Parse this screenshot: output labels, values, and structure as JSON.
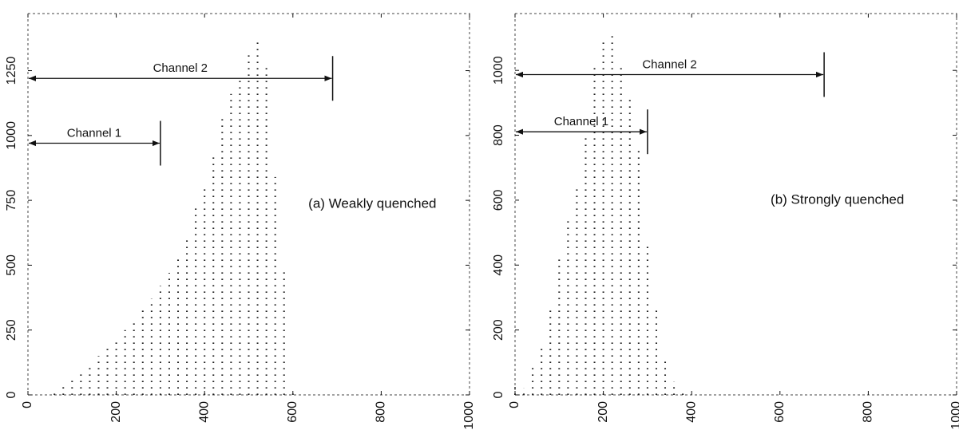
{
  "chart_data": [
    {
      "type": "dot-histogram",
      "annotation": "(a) Weakly quenched",
      "x": [
        60,
        80,
        100,
        120,
        140,
        160,
        180,
        200,
        220,
        240,
        260,
        280,
        300,
        320,
        340,
        360,
        380,
        400,
        420,
        440,
        460,
        480,
        500,
        520,
        540,
        560,
        580,
        600
      ],
      "values": [
        20,
        40,
        65,
        80,
        110,
        150,
        180,
        210,
        250,
        290,
        330,
        370,
        420,
        470,
        530,
        600,
        720,
        800,
        920,
        1070,
        1160,
        1230,
        1310,
        1360,
        1270,
        840,
        490,
        20
      ],
      "color": "#222",
      "xlim": [
        0,
        1000
      ],
      "xticks": [
        0,
        200,
        400,
        600,
        800,
        1000
      ],
      "ylim": [
        0,
        1470
      ],
      "yticks": [
        0,
        250,
        500,
        750,
        1000,
        1250
      ],
      "channels": [
        {
          "label": "Channel 1",
          "range": [
            0,
            300
          ]
        },
        {
          "label": "Channel 2",
          "range": [
            0,
            690
          ]
        }
      ]
    },
    {
      "type": "dot-histogram",
      "annotation": "(b) Strongly quenched",
      "x": [
        0,
        20,
        40,
        60,
        80,
        100,
        120,
        140,
        160,
        180,
        200,
        220,
        240,
        260,
        280,
        300,
        320,
        340,
        360,
        380
      ],
      "values": [
        30,
        20,
        90,
        150,
        270,
        420,
        550,
        640,
        800,
        1020,
        1100,
        1110,
        1020,
        910,
        760,
        470,
        260,
        110,
        40,
        10
      ],
      "color": "#222",
      "xlim": [
        0,
        1000
      ],
      "xticks": [
        0,
        200,
        400,
        600,
        800,
        1000
      ],
      "ylim": [
        0,
        1175
      ],
      "yticks": [
        0,
        200,
        400,
        600,
        800,
        1000
      ],
      "channels": [
        {
          "label": "Channel 1",
          "range": [
            0,
            300
          ]
        },
        {
          "label": "Channel 2",
          "range": [
            0,
            700
          ]
        }
      ]
    }
  ]
}
